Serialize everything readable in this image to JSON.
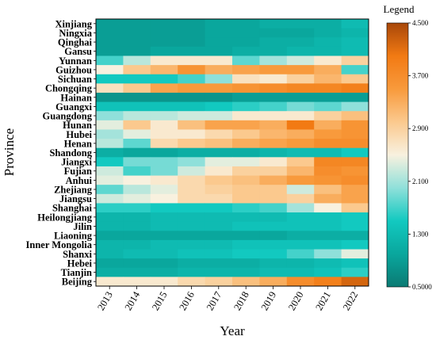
{
  "chart_data": {
    "type": "heatmap",
    "xlabel": "Year",
    "ylabel": "Province",
    "legend_title": "Legend",
    "legend_placement": "right",
    "x": [
      "2013",
      "2014",
      "2015",
      "2016",
      "2017",
      "2018",
      "2019",
      "2020",
      "2021",
      "2022"
    ],
    "y": [
      "Xinjiang",
      "Ningxia",
      "Qinghai",
      "Gansu",
      "Yunnan",
      "Guizhou",
      "Sichuan",
      "Chongqing",
      "Hainan",
      "Guangxi",
      "Guangdong",
      "Hunan",
      "Hubei",
      "Henan",
      "Shandong",
      "Jiangxi",
      "Fujian",
      "Anhui",
      "Zhejiang",
      "Jiangsu",
      "Shanghai",
      "Heilongjiang",
      "Jilin",
      "Liaoning",
      "Inner Mongolia",
      "Shanxi",
      "Hebei",
      "Tianjin",
      "Beijing"
    ],
    "values": [
      [
        0.9,
        0.9,
        0.9,
        0.9,
        1.0,
        1.0,
        1.1,
        1.1,
        1.1,
        1.3
      ],
      [
        0.9,
        0.9,
        0.9,
        0.9,
        1.0,
        1.0,
        1.0,
        1.0,
        1.1,
        1.2
      ],
      [
        0.9,
        0.9,
        0.9,
        0.9,
        1.0,
        1.0,
        1.1,
        1.1,
        1.2,
        1.3
      ],
      [
        0.9,
        0.9,
        1.0,
        1.0,
        1.0,
        1.1,
        1.1,
        1.2,
        1.2,
        1.3
      ],
      [
        1.7,
        2.2,
        2.6,
        2.6,
        2.6,
        1.8,
        2.1,
        2.3,
        2.6,
        2.9
      ],
      [
        2.5,
        3.0,
        3.2,
        3.6,
        3.3,
        3.4,
        3.5,
        3.5,
        3.3,
        1.7
      ],
      [
        1.5,
        1.5,
        1.5,
        1.7,
        2.0,
        2.7,
        2.6,
        2.9,
        3.2,
        3.0
      ],
      [
        2.7,
        3.0,
        3.4,
        3.5,
        3.5,
        3.6,
        3.7,
        3.8,
        3.8,
        3.9
      ],
      [
        0.8,
        0.8,
        0.8,
        0.8,
        0.8,
        0.9,
        0.9,
        0.9,
        0.9,
        0.9
      ],
      [
        1.4,
        1.4,
        1.4,
        1.4,
        1.5,
        1.6,
        1.7,
        1.9,
        1.8,
        2.0
      ],
      [
        2.0,
        2.2,
        2.2,
        2.3,
        2.3,
        2.6,
        2.6,
        2.6,
        2.9,
        3.1
      ],
      [
        2.4,
        3.0,
        2.6,
        3.1,
        3.4,
        3.4,
        3.3,
        4.0,
        3.3,
        3.6
      ],
      [
        2.1,
        2.4,
        2.6,
        2.6,
        2.8,
        3.0,
        3.2,
        3.3,
        3.5,
        3.6
      ],
      [
        2.2,
        1.8,
        2.8,
        3.0,
        3.1,
        3.3,
        3.4,
        3.5,
        3.7,
        3.7
      ],
      [
        1.1,
        1.0,
        1.0,
        1.1,
        1.1,
        1.1,
        1.2,
        1.3,
        1.3,
        1.5
      ],
      [
        1.5,
        1.9,
        1.9,
        2.0,
        2.4,
        2.4,
        2.6,
        3.0,
        3.8,
        3.8
      ],
      [
        2.3,
        1.7,
        1.9,
        2.3,
        2.6,
        2.9,
        2.9,
        3.2,
        3.7,
        3.6
      ],
      [
        2.4,
        2.5,
        2.6,
        2.8,
        3.0,
        3.1,
        3.3,
        3.5,
        3.6,
        3.7
      ],
      [
        1.8,
        2.2,
        2.4,
        2.8,
        2.9,
        3.0,
        3.0,
        2.3,
        3.1,
        3.4
      ],
      [
        2.3,
        2.4,
        2.5,
        2.8,
        2.8,
        3.0,
        3.0,
        2.9,
        3.3,
        3.4
      ],
      [
        1.6,
        1.6,
        1.5,
        1.5,
        1.5,
        1.6,
        1.7,
        2.1,
        2.5,
        3.0
      ],
      [
        1.2,
        1.2,
        1.3,
        1.3,
        1.3,
        1.3,
        1.3,
        1.4,
        1.4,
        1.5
      ],
      [
        1.2,
        1.2,
        1.3,
        1.3,
        1.3,
        1.4,
        1.4,
        1.4,
        1.4,
        1.5
      ],
      [
        1.0,
        1.0,
        1.0,
        1.0,
        1.0,
        1.0,
        1.0,
        1.1,
        1.1,
        1.1
      ],
      [
        1.2,
        1.2,
        1.3,
        1.3,
        1.3,
        1.4,
        1.4,
        1.4,
        1.4,
        1.5
      ],
      [
        1.2,
        1.3,
        1.3,
        1.4,
        1.4,
        1.5,
        1.5,
        1.7,
        2.0,
        2.4
      ],
      [
        1.0,
        1.0,
        1.0,
        1.1,
        1.1,
        1.1,
        1.2,
        1.2,
        1.3,
        1.4
      ],
      [
        1.1,
        1.1,
        1.1,
        1.2,
        1.2,
        1.2,
        1.3,
        1.3,
        1.4,
        1.6
      ],
      [
        2.6,
        2.6,
        2.6,
        2.8,
        2.9,
        3.1,
        3.3,
        3.7,
        3.9,
        4.2
      ]
    ],
    "colorbar": {
      "min": 0.5,
      "max": 4.5,
      "ticks": [
        "4.500",
        "3.700",
        "2.900",
        "2.100",
        "1.300",
        "0.5000"
      ],
      "colors": [
        "#0b7a73",
        "#0aa79d",
        "#12c9c0",
        "#8fe0da",
        "#f8f1df",
        "#fbc98e",
        "#f89a3c",
        "#f27a13",
        "#a84709"
      ]
    }
  }
}
